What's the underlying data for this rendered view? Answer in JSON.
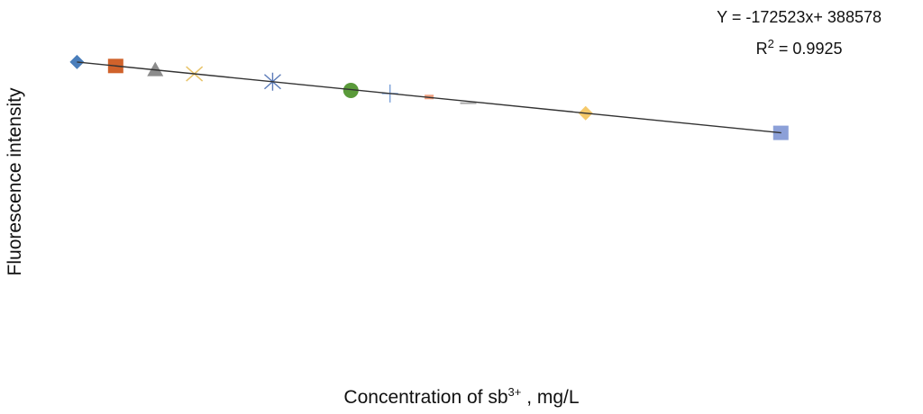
{
  "chart_data": {
    "type": "scatter",
    "title": "",
    "ylabel": "Fluorescence intensity",
    "xlabel_main": "Concentration of sb",
    "xlabel_sup": "3+",
    "xlabel_tail": " , mg/L",
    "trendline": {
      "equation": "Y = -172523x+ 388578",
      "r2_prefix": "R",
      "r2_sup": "2",
      "r2_value": " = 0.9925",
      "slope": -172523,
      "intercept": 388578,
      "color": "#333333"
    },
    "xlim": [
      -0.01,
      0.21
    ],
    "ylim": [
      250000,
      400000
    ],
    "grid": false,
    "axes_visible": false,
    "points": [
      {
        "x": 0.0,
        "y": 388578,
        "marker": "diamond",
        "color": "#4a7ebb"
      },
      {
        "x": 0.01,
        "y": 386853,
        "marker": "square",
        "color": "#d0622b"
      },
      {
        "x": 0.02,
        "y": 385128,
        "marker": "triangle",
        "color": "#8c8c8c"
      },
      {
        "x": 0.03,
        "y": 383402,
        "marker": "x",
        "color": "#e8c46a"
      },
      {
        "x": 0.05,
        "y": 379952,
        "marker": "star",
        "color": "#5a7ab8"
      },
      {
        "x": 0.07,
        "y": 376501,
        "marker": "circle",
        "color": "#5a9a3a"
      },
      {
        "x": 0.08,
        "y": 374776,
        "marker": "plus",
        "color": "#7aa0d8"
      },
      {
        "x": 0.09,
        "y": 373051,
        "marker": "small-square",
        "color": "#f0a080"
      },
      {
        "x": 0.1,
        "y": 371326,
        "marker": "dash",
        "color": "#a8a8a8"
      },
      {
        "x": 0.13,
        "y": 366150,
        "marker": "diamond",
        "color": "#f5c96a"
      },
      {
        "x": 0.18,
        "y": 357524,
        "marker": "square",
        "color": "#8ca0d8"
      }
    ]
  }
}
